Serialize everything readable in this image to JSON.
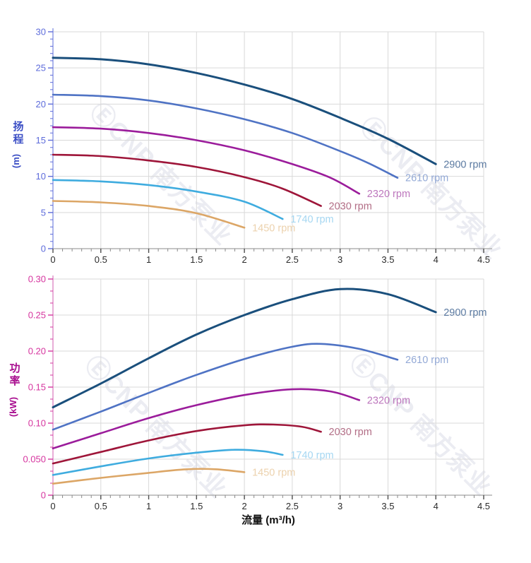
{
  "figure": {
    "watermark_text": "ⒺCNP 南方泵业",
    "watermark_color": "rgba(35,45,110,0.09)",
    "gridline_color": "#d9d9d9",
    "xticks": [
      0,
      0.5,
      1,
      1.5,
      2,
      2.5,
      3,
      3.5,
      4,
      4.5
    ],
    "x_tick_labels": [
      "0",
      "0.5",
      "1",
      "1.5",
      "2",
      "2.5",
      "3",
      "3.5",
      "4",
      "4.5"
    ],
    "x_axis": {
      "tick_label_color": "#2b2b2b",
      "line_color": "#b2b2b2",
      "tick_color": "#4d4d4d",
      "minor_tick_color": "#8a8a8a"
    }
  },
  "chart_data": [
    {
      "type": "line",
      "ylabel": "扬程",
      "ylabel_unit": "(m)",
      "xlabel": "",
      "xlim": [
        0,
        4.5
      ],
      "ylim": [
        0,
        30
      ],
      "yticks": [
        0,
        5,
        10,
        15,
        20,
        25,
        30
      ],
      "ytick_labels": [
        "0",
        "5",
        "10",
        "15",
        "20",
        "25",
        "30"
      ],
      "y_minor_per_major": 4,
      "x_minor_per_major": 4,
      "grid": true,
      "legend_position": "curve-end",
      "axis": {
        "tick_label_color": "#5e6cdb",
        "line_color": "#8a96e3",
        "title_color": "#3c4fc5"
      },
      "series": [
        {
          "name": "2900 rpm",
          "color": "#1a4f7c",
          "label_color": "#5b7aa1",
          "width": 3,
          "points": [
            [
              0,
              26.4
            ],
            [
              0.5,
              26.2
            ],
            [
              1,
              25.5
            ],
            [
              1.5,
              24.3
            ],
            [
              2,
              22.7
            ],
            [
              2.5,
              20.7
            ],
            [
              3,
              18.1
            ],
            [
              3.5,
              15.2
            ],
            [
              4,
              11.7
            ]
          ]
        },
        {
          "name": "2610 rpm",
          "color": "#4f73c4",
          "label_color": "#93a9d6",
          "width": 2.6,
          "points": [
            [
              0,
              21.3
            ],
            [
              0.5,
              21.1
            ],
            [
              1,
              20.5
            ],
            [
              1.5,
              19.4
            ],
            [
              2,
              17.9
            ],
            [
              2.5,
              16.0
            ],
            [
              3,
              13.5
            ],
            [
              3.3,
              11.8
            ],
            [
              3.6,
              9.8
            ]
          ]
        },
        {
          "name": "2320 rpm",
          "color": "#9b1c9b",
          "label_color": "#bd77bd",
          "width": 2.6,
          "points": [
            [
              0,
              16.8
            ],
            [
              0.5,
              16.6
            ],
            [
              1,
              16.0
            ],
            [
              1.5,
              15.0
            ],
            [
              2,
              13.6
            ],
            [
              2.5,
              11.7
            ],
            [
              2.9,
              9.8
            ],
            [
              3.2,
              7.6
            ]
          ]
        },
        {
          "name": "2030 rpm",
          "color": "#9e1539",
          "label_color": "#b26e86",
          "width": 2.6,
          "points": [
            [
              0,
              13.0
            ],
            [
              0.5,
              12.8
            ],
            [
              1,
              12.2
            ],
            [
              1.5,
              11.3
            ],
            [
              2,
              9.9
            ],
            [
              2.4,
              8.3
            ],
            [
              2.8,
              5.9
            ]
          ]
        },
        {
          "name": "1740 rpm",
          "color": "#3facdf",
          "label_color": "#a6d7f2",
          "width": 2.6,
          "points": [
            [
              0,
              9.5
            ],
            [
              0.5,
              9.3
            ],
            [
              1,
              8.8
            ],
            [
              1.5,
              7.9
            ],
            [
              2,
              6.5
            ],
            [
              2.4,
              4.1
            ]
          ]
        },
        {
          "name": "1450 rpm",
          "color": "#dca666",
          "label_color": "#ecd2ae",
          "width": 2.6,
          "points": [
            [
              0,
              6.6
            ],
            [
              0.5,
              6.4
            ],
            [
              1,
              5.9
            ],
            [
              1.5,
              4.9
            ],
            [
              2,
              2.9
            ]
          ]
        }
      ]
    },
    {
      "type": "line",
      "ylabel": "功率",
      "ylabel_unit": "(kW)",
      "xlabel": "流量 (m³/h)",
      "xlim": [
        0,
        4.5
      ],
      "ylim": [
        0,
        0.3
      ],
      "yticks": [
        0,
        0.05,
        0.1,
        0.15,
        0.2,
        0.25,
        0.3
      ],
      "ytick_labels": [
        "0",
        "0.050",
        "0.10",
        "0.15",
        "0.20",
        "0.25",
        "0.30"
      ],
      "y_minor_per_major": 2,
      "x_minor_per_major": 4,
      "grid": true,
      "legend_position": "curve-end",
      "axis": {
        "tick_label_color": "#d6359f",
        "line_color": "#de8ac6",
        "title_color": "#a80d8f"
      },
      "series": [
        {
          "name": "2900 rpm",
          "color": "#1a4f7c",
          "label_color": "#5b7aa1",
          "width": 3,
          "points": [
            [
              0,
              0.122
            ],
            [
              0.5,
              0.155
            ],
            [
              1,
              0.19
            ],
            [
              1.5,
              0.223
            ],
            [
              2,
              0.25
            ],
            [
              2.5,
              0.272
            ],
            [
              3,
              0.286
            ],
            [
              3.5,
              0.279
            ],
            [
              4,
              0.254
            ]
          ]
        },
        {
          "name": "2610 rpm",
          "color": "#4f73c4",
          "label_color": "#93a9d6",
          "width": 2.6,
          "points": [
            [
              0,
              0.091
            ],
            [
              0.5,
              0.116
            ],
            [
              1,
              0.142
            ],
            [
              1.5,
              0.167
            ],
            [
              2,
              0.189
            ],
            [
              2.5,
              0.206
            ],
            [
              2.8,
              0.21
            ],
            [
              3.2,
              0.203
            ],
            [
              3.6,
              0.188
            ]
          ]
        },
        {
          "name": "2320 rpm",
          "color": "#9b1c9b",
          "label_color": "#bd77bd",
          "width": 2.6,
          "points": [
            [
              0,
              0.065
            ],
            [
              0.5,
              0.086
            ],
            [
              1,
              0.107
            ],
            [
              1.5,
              0.125
            ],
            [
              2,
              0.139
            ],
            [
              2.5,
              0.147
            ],
            [
              2.9,
              0.144
            ],
            [
              3.2,
              0.132
            ]
          ]
        },
        {
          "name": "2030 rpm",
          "color": "#9e1539",
          "label_color": "#b26e86",
          "width": 2.6,
          "points": [
            [
              0,
              0.044
            ],
            [
              0.5,
              0.06
            ],
            [
              1,
              0.076
            ],
            [
              1.5,
              0.089
            ],
            [
              2,
              0.097
            ],
            [
              2.3,
              0.098
            ],
            [
              2.6,
              0.095
            ],
            [
              2.8,
              0.088
            ]
          ]
        },
        {
          "name": "1740 rpm",
          "color": "#3facdf",
          "label_color": "#a6d7f2",
          "width": 2.6,
          "points": [
            [
              0,
              0.028
            ],
            [
              0.5,
              0.04
            ],
            [
              1,
              0.051
            ],
            [
              1.5,
              0.059
            ],
            [
              1.9,
              0.063
            ],
            [
              2.2,
              0.061
            ],
            [
              2.4,
              0.056
            ]
          ]
        },
        {
          "name": "1450 rpm",
          "color": "#dca666",
          "label_color": "#ecd2ae",
          "width": 2.6,
          "points": [
            [
              0,
              0.016
            ],
            [
              0.5,
              0.024
            ],
            [
              1,
              0.031
            ],
            [
              1.4,
              0.036
            ],
            [
              1.7,
              0.036
            ],
            [
              2,
              0.032
            ]
          ]
        }
      ]
    }
  ]
}
